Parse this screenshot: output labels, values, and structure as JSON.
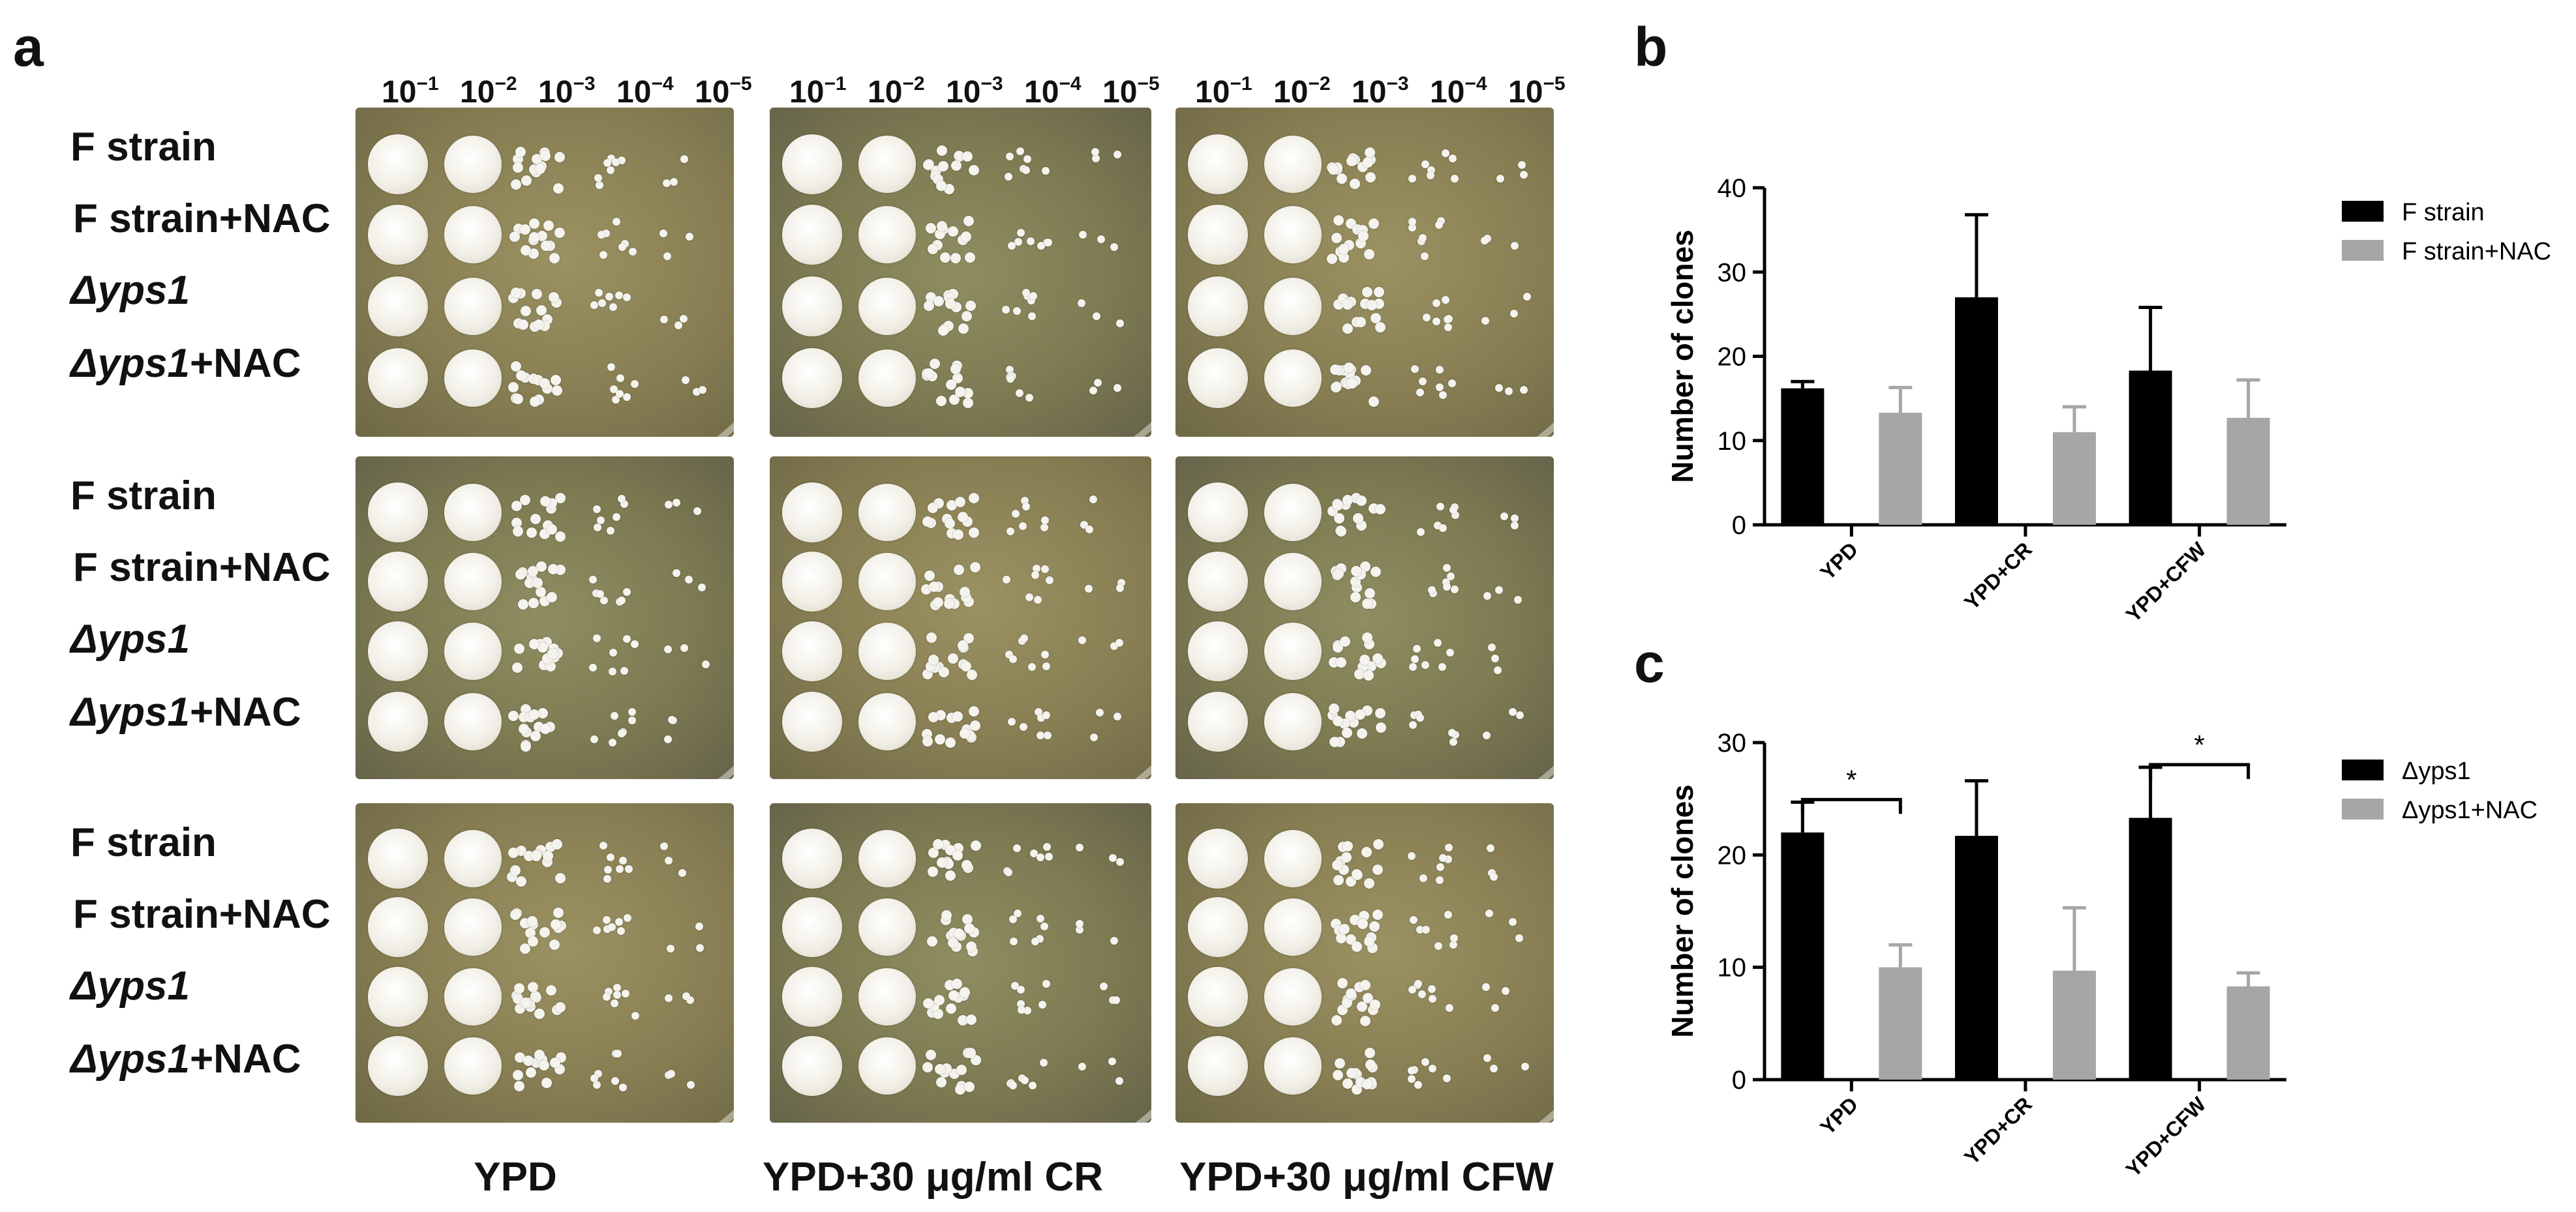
{
  "panel_a": {
    "letter": "a",
    "dilutions": [
      "10",
      "10",
      "10",
      "10",
      "10"
    ],
    "dilution_exponents": [
      "−1",
      "−2",
      "−3",
      "−4",
      "−5"
    ],
    "rows": [
      {
        "name": "F strain",
        "italic": "",
        "suffix": ""
      },
      {
        "name": "F strain+NAC",
        "italic": "",
        "suffix": ""
      },
      {
        "name": "",
        "italic": "Δyps1",
        "suffix": ""
      },
      {
        "name": "",
        "italic": "Δyps1",
        "suffix": "+NAC"
      }
    ],
    "columns": [
      "YPD",
      "YPD+30 μg/ml CR",
      "YPD+30 μg/ml CFW"
    ]
  },
  "panel_b": {
    "letter": "b"
  },
  "panel_c": {
    "letter": "c"
  },
  "chart_data": [
    {
      "type": "bar",
      "title": "",
      "xlabel": "",
      "ylabel": "Number of clones",
      "categories": [
        "YPD",
        "YPD+CR",
        "YPD+CFW"
      ],
      "ylim": [
        0,
        40
      ],
      "yticks": [
        "0",
        "10",
        "20",
        "30",
        "40"
      ],
      "series": [
        {
          "name": "F strain",
          "values": [
            16.2,
            27.0,
            18.3
          ],
          "errors": [
            0.8,
            9.8,
            7.5
          ],
          "color": "#000000"
        },
        {
          "name": "F strain+NAC",
          "values": [
            13.3,
            11.0,
            12.7
          ],
          "errors": [
            3.0,
            3.0,
            4.5
          ],
          "color": "#a6a6a8"
        }
      ],
      "legend": "right",
      "significance": []
    },
    {
      "type": "bar",
      "title": "",
      "xlabel": "",
      "ylabel": "Number of clones",
      "categories": [
        "YPD",
        "YPD+CR",
        "YPD+CFW"
      ],
      "ylim": [
        0,
        30
      ],
      "yticks": [
        "0",
        "10",
        "20",
        "30"
      ],
      "series": [
        {
          "name": "Δyps1",
          "values": [
            22.0,
            21.7,
            23.3
          ],
          "errors": [
            2.7,
            4.9,
            4.5
          ],
          "color": "#000000"
        },
        {
          "name": "Δyps1+NAC",
          "values": [
            10.0,
            9.7,
            8.3
          ],
          "errors": [
            2.0,
            5.6,
            1.2
          ],
          "color": "#a6a6a8"
        }
      ],
      "legend": "right",
      "significance": [
        {
          "category": "YPD",
          "label": "*"
        },
        {
          "category": "YPD+CFW",
          "label": "*"
        }
      ]
    }
  ]
}
